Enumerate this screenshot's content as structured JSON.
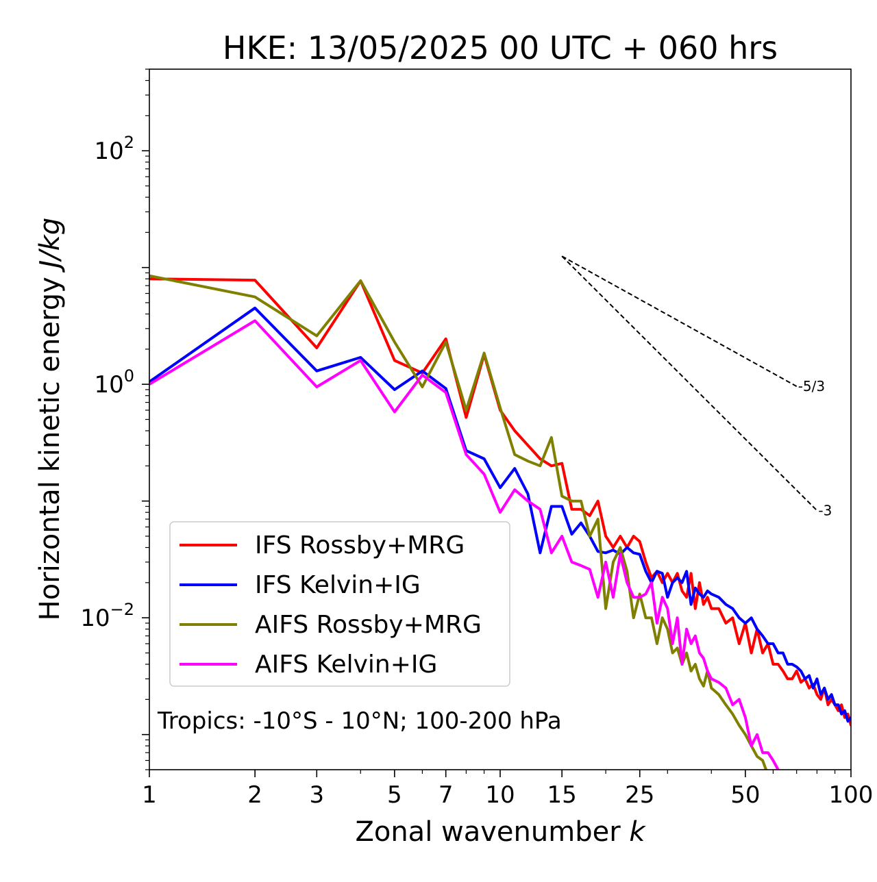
{
  "chart_data": {
    "type": "line",
    "title": "HKE: 13/05/2025 00 UTC + 060 hrs",
    "xlabel": "Zonal wavenumber",
    "xlabel_symbol": "k",
    "ylabel": "Horizontal kinetic energy",
    "ylabel_units": "J/kg",
    "x_scale": "log",
    "y_scale": "log",
    "xlim": [
      1,
      100
    ],
    "ylim": [
      0.0005,
      500
    ],
    "x_ticks": [
      1,
      2,
      3,
      5,
      7,
      10,
      15,
      25,
      50,
      100
    ],
    "x_tick_labels": [
      "1",
      "2",
      "3",
      "5",
      "7",
      "10",
      "15",
      "25",
      "50",
      "100"
    ],
    "y_ticks": [
      0.01,
      1,
      100
    ],
    "y_tick_labels": [
      {
        "base": "10",
        "exp": "−2"
      },
      {
        "base": "10",
        "exp": "0"
      },
      {
        "base": "10",
        "exp": "2"
      }
    ],
    "grid": false,
    "legend_position": "lower-left",
    "annotation": "Tropics: -10°S - 10°N; 100-200 hPa",
    "reference_lines": [
      {
        "label": "-5/3",
        "x": [
          15,
          70
        ],
        "y": [
          12.5,
          0.96
        ],
        "style": "dashed",
        "color": "#000000"
      },
      {
        "label": "-3",
        "x": [
          15,
          80
        ],
        "y": [
          12.5,
          0.083
        ],
        "style": "dashed",
        "color": "#000000"
      }
    ],
    "series": [
      {
        "name": "IFS Rossby+MRG",
        "color": "#ff0000",
        "x": [
          1,
          2,
          3,
          4,
          5,
          6,
          7,
          8,
          9,
          10,
          11,
          12,
          13,
          14,
          15,
          16,
          17,
          18,
          19,
          20,
          21,
          22,
          23,
          24,
          25,
          26,
          27,
          28,
          29,
          30,
          31,
          32,
          33,
          34,
          35,
          36,
          37,
          38,
          39,
          40,
          42,
          44,
          46,
          48,
          50,
          52,
          54,
          56,
          58,
          60,
          62,
          64,
          66,
          68,
          70,
          72,
          74,
          76,
          78,
          80,
          82,
          84,
          86,
          88,
          90,
          92,
          94,
          96,
          98,
          100
        ],
        "y": [
          8.0,
          7.8,
          2.05,
          7.7,
          1.6,
          1.25,
          2.45,
          0.52,
          1.8,
          0.6,
          0.4,
          0.3,
          0.23,
          0.2,
          0.21,
          0.085,
          0.085,
          0.075,
          0.1,
          0.05,
          0.04,
          0.05,
          0.04,
          0.05,
          0.045,
          0.03,
          0.022,
          0.025,
          0.02,
          0.024,
          0.02,
          0.024,
          0.017,
          0.015,
          0.024,
          0.012,
          0.02,
          0.013,
          0.015,
          0.012,
          0.012,
          0.009,
          0.01,
          0.006,
          0.009,
          0.005,
          0.008,
          0.005,
          0.006,
          0.004,
          0.004,
          0.0035,
          0.003,
          0.003,
          0.0035,
          0.0028,
          0.003,
          0.0025,
          0.0027,
          0.0022,
          0.002,
          0.0025,
          0.0018,
          0.002,
          0.0018,
          0.0016,
          0.0018,
          0.0014,
          0.0015,
          0.0012
        ]
      },
      {
        "name": "IFS Kelvin+IG",
        "color": "#0000ff",
        "x": [
          1,
          2,
          3,
          4,
          5,
          6,
          7,
          8,
          9,
          10,
          11,
          12,
          13,
          14,
          15,
          16,
          17,
          18,
          19,
          20,
          21,
          22,
          23,
          24,
          25,
          26,
          27,
          28,
          29,
          30,
          31,
          32,
          33,
          34,
          35,
          36,
          37,
          38,
          39,
          40,
          42,
          44,
          46,
          48,
          50,
          52,
          54,
          56,
          58,
          60,
          62,
          64,
          66,
          68,
          70,
          72,
          74,
          76,
          78,
          80,
          82,
          84,
          86,
          88,
          90,
          92,
          94,
          96,
          98,
          100
        ],
        "y": [
          1.05,
          4.5,
          1.3,
          1.7,
          0.9,
          1.3,
          0.92,
          0.27,
          0.23,
          0.13,
          0.19,
          0.115,
          0.036,
          0.09,
          0.09,
          0.052,
          0.065,
          0.05,
          0.037,
          0.036,
          0.038,
          0.035,
          0.04,
          0.036,
          0.035,
          0.025,
          0.02,
          0.025,
          0.024,
          0.015,
          0.02,
          0.022,
          0.02,
          0.025,
          0.013,
          0.018,
          0.016,
          0.015,
          0.017,
          0.016,
          0.015,
          0.013,
          0.012,
          0.01,
          0.009,
          0.01,
          0.008,
          0.007,
          0.006,
          0.006,
          0.005,
          0.005,
          0.004,
          0.004,
          0.0038,
          0.0035,
          0.003,
          0.0032,
          0.0025,
          0.003,
          0.0022,
          0.0025,
          0.002,
          0.0022,
          0.0018,
          0.0018,
          0.0015,
          0.0016,
          0.0013,
          0.0014
        ]
      },
      {
        "name": "AIFS Rossby+MRG",
        "color": "#808000",
        "x": [
          1,
          2,
          3,
          4,
          5,
          6,
          7,
          8,
          9,
          10,
          11,
          12,
          13,
          14,
          15,
          16,
          17,
          18,
          19,
          20,
          21,
          22,
          23,
          24,
          25,
          26,
          27,
          28,
          29,
          30,
          31,
          32,
          33,
          34,
          35,
          36,
          37,
          38,
          39,
          40,
          42,
          44,
          46,
          48,
          50,
          52,
          54,
          56,
          58,
          60
        ],
        "y": [
          8.5,
          5.6,
          2.6,
          7.7,
          2.3,
          0.95,
          2.3,
          0.6,
          1.85,
          0.63,
          0.25,
          0.22,
          0.2,
          0.35,
          0.11,
          0.1,
          0.1,
          0.05,
          0.07,
          0.012,
          0.03,
          0.04,
          0.025,
          0.01,
          0.016,
          0.01,
          0.01,
          0.006,
          0.01,
          0.008,
          0.005,
          0.0055,
          0.004,
          0.005,
          0.0035,
          0.004,
          0.003,
          0.0026,
          0.0035,
          0.0025,
          0.0022,
          0.0018,
          0.0015,
          0.0012,
          0.001,
          0.0008,
          0.00065,
          0.0006,
          0.00045,
          0.0003
        ]
      },
      {
        "name": "AIFS Kelvin+IG",
        "color": "#ff00ff",
        "x": [
          1,
          2,
          3,
          4,
          5,
          6,
          7,
          8,
          9,
          10,
          11,
          12,
          13,
          14,
          15,
          16,
          17,
          18,
          19,
          20,
          21,
          22,
          23,
          24,
          25,
          26,
          27,
          28,
          29,
          30,
          31,
          32,
          33,
          34,
          35,
          36,
          37,
          38,
          39,
          40,
          42,
          44,
          46,
          48,
          50,
          52,
          54,
          56,
          58,
          60,
          62,
          64
        ],
        "y": [
          1.0,
          3.5,
          0.95,
          1.6,
          0.58,
          1.2,
          0.85,
          0.25,
          0.17,
          0.08,
          0.125,
          0.1,
          0.085,
          0.036,
          0.05,
          0.03,
          0.028,
          0.026,
          0.015,
          0.03,
          0.015,
          0.035,
          0.02,
          0.015,
          0.015,
          0.016,
          0.02,
          0.009,
          0.015,
          0.012,
          0.006,
          0.01,
          0.004,
          0.008,
          0.006,
          0.007,
          0.005,
          0.0045,
          0.0035,
          0.003,
          0.0028,
          0.0025,
          0.0018,
          0.002,
          0.0014,
          0.0008,
          0.001,
          0.0007,
          0.0007,
          0.0006,
          0.0005,
          0.0004
        ]
      }
    ]
  }
}
